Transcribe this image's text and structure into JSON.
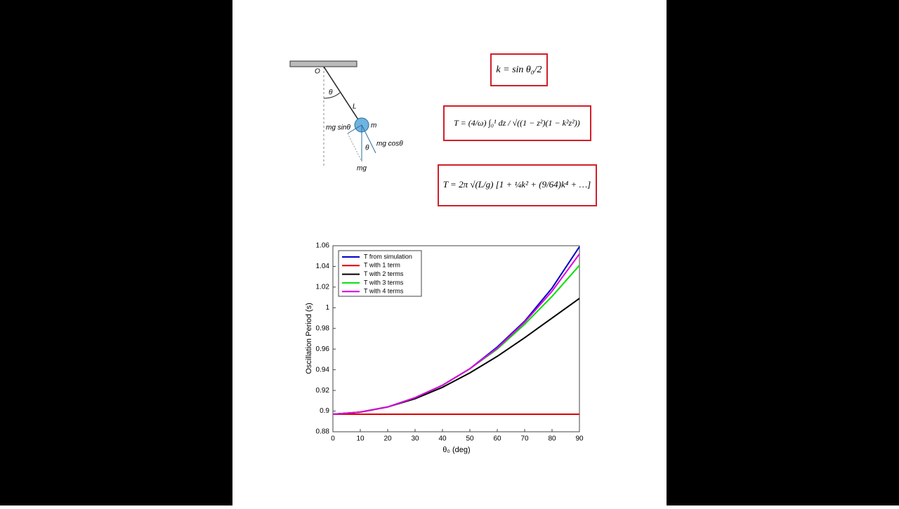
{
  "diagram": {
    "labels": [
      "O",
      "θ",
      "L",
      "m",
      "mg sinθ",
      "mg cosθ",
      "θ",
      "mg"
    ]
  },
  "formulas": [
    "k = sin θ₀/2",
    "T = (4/ω) ∫₀¹ dz / √((1 − z²)(1 − k²z²))",
    "T = 2π √(L/g) [1 + ¼k² + (9/64)k⁴ + …]"
  ],
  "chart_data": {
    "type": "line",
    "x": [
      0,
      10,
      20,
      30,
      40,
      50,
      60,
      70,
      80,
      90
    ],
    "series": [
      {
        "name": "T from simulation",
        "color": "#0000c8",
        "values": [
          0.897,
          0.899,
          0.904,
          0.913,
          0.925,
          0.941,
          0.962,
          0.987,
          1.019,
          1.059
        ]
      },
      {
        "name": "T with 1 term",
        "color": "#e00000",
        "values": [
          0.897,
          0.897,
          0.897,
          0.897,
          0.897,
          0.897,
          0.897,
          0.897,
          0.897,
          0.897
        ]
      },
      {
        "name": "T with 2 terms",
        "color": "#000000",
        "values": [
          0.897,
          0.899,
          0.904,
          0.912,
          0.923,
          0.937,
          0.953,
          0.971,
          0.99,
          1.009
        ]
      },
      {
        "name": "T with 3 terms",
        "color": "#00e000",
        "values": [
          0.897,
          0.899,
          0.904,
          0.913,
          0.925,
          0.941,
          0.96,
          0.984,
          1.011,
          1.041
        ]
      },
      {
        "name": "T with 4 terms",
        "color": "#e000e0",
        "values": [
          0.897,
          0.899,
          0.904,
          0.913,
          0.925,
          0.941,
          0.961,
          0.986,
          1.016,
          1.052
        ]
      }
    ],
    "xlabel": "θ₀ (deg)",
    "ylabel": "Oscillation Period (s)",
    "xlim": [
      0,
      90
    ],
    "ylim": [
      0.88,
      1.06
    ],
    "xticks": [
      0,
      10,
      20,
      30,
      40,
      50,
      60,
      70,
      80,
      90
    ],
    "yticks": [
      0.88,
      0.9,
      0.92,
      0.94,
      0.96,
      0.98,
      1,
      1.02,
      1.04,
      1.06
    ],
    "legend": "upper left"
  }
}
